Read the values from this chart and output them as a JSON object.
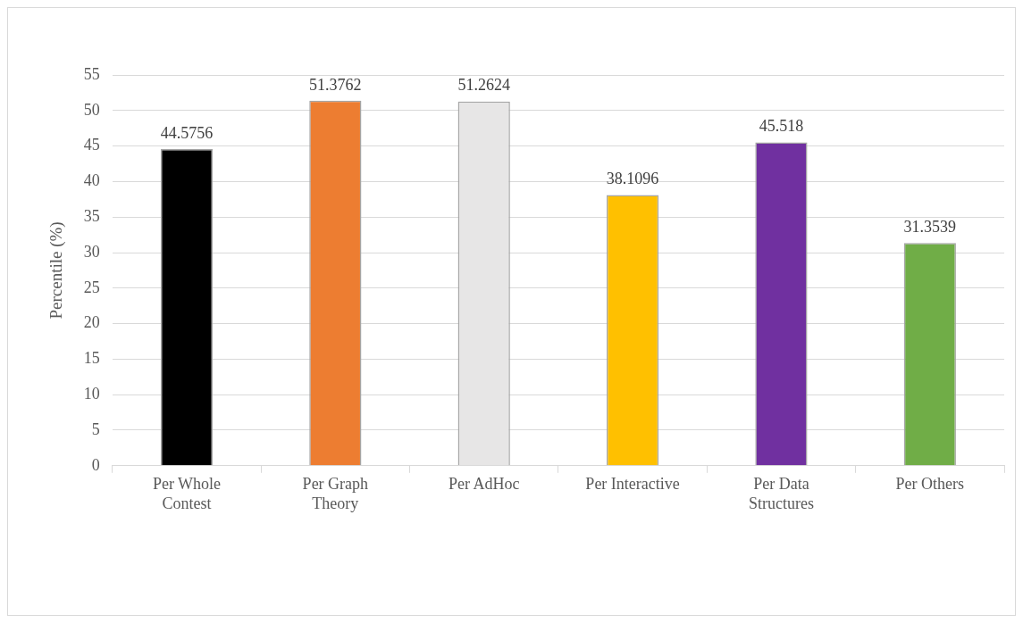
{
  "chart_data": {
    "type": "bar",
    "ylabel": "Percentile (%)",
    "categories": [
      "Per Whole Contest",
      "Per Graph Theory",
      "Per AdHoc",
      "Per Interactive",
      "Per Data Structures",
      "Per Others"
    ],
    "values": [
      44.5756,
      51.3762,
      51.2624,
      38.1096,
      45.518,
      31.3539
    ],
    "colors": [
      "#000000",
      "#ed7d31",
      "#e7e6e6",
      "#ffc000",
      "#7030a0",
      "#70ad47"
    ],
    "ylim": [
      0,
      55
    ],
    "yticks": [
      0,
      5,
      10,
      15,
      20,
      25,
      30,
      35,
      40,
      45,
      50,
      55
    ],
    "grid": "y",
    "data_labels": true,
    "legend": false
  }
}
